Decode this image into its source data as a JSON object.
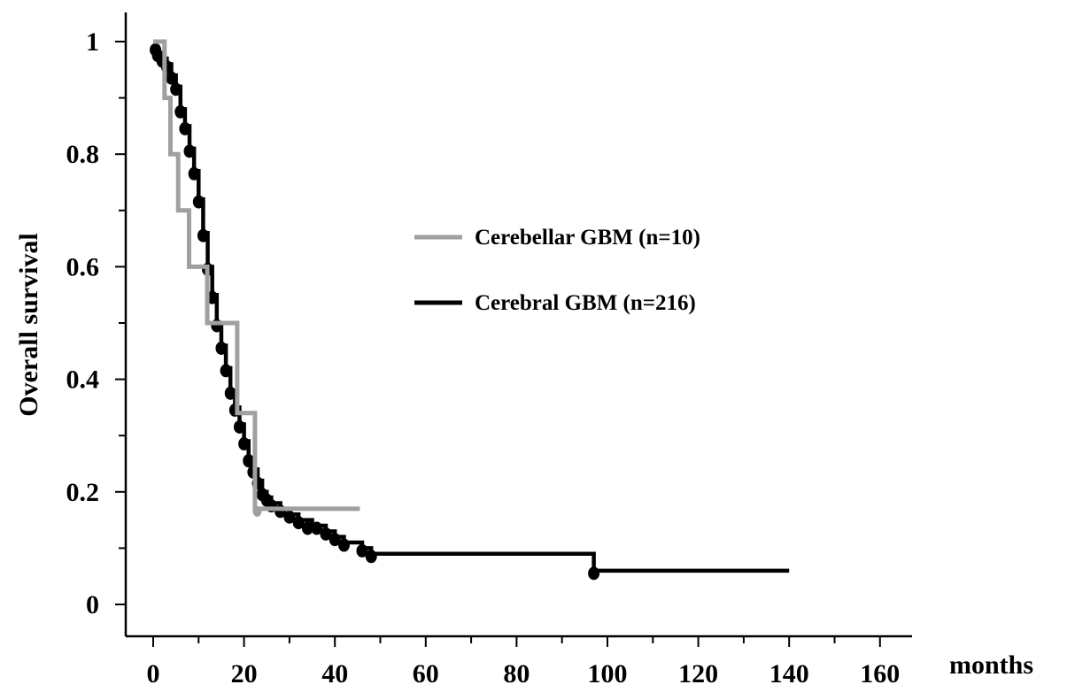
{
  "chart_data": {
    "type": "line",
    "subtype": "kaplan-meier",
    "title": "",
    "xlabel": "months",
    "ylabel": "Overall survival",
    "xlim": [
      -5,
      167
    ],
    "ylim": [
      -0.05,
      1.05
    ],
    "xticks": [
      0,
      20,
      40,
      60,
      80,
      100,
      120,
      140,
      160
    ],
    "xtick_labels": [
      "0",
      "20",
      "40",
      "60",
      "80",
      "100",
      "120",
      "140",
      "160"
    ],
    "xminor_step": 10,
    "yticks": [
      0,
      0.2,
      0.4,
      0.6,
      0.8,
      1
    ],
    "ytick_labels": [
      "0",
      "0.2",
      "0.4",
      "0.6",
      "0.8",
      "1"
    ],
    "grid": false,
    "legend_position": "center-right",
    "series": [
      {
        "name": "Cerebellar GBM (n=10)",
        "color": "#a0a0a0",
        "step": true,
        "points": [
          [
            0,
            1.0
          ],
          [
            2.5,
            1.0
          ],
          [
            2.5,
            0.9
          ],
          [
            3.8,
            0.9
          ],
          [
            3.8,
            0.8
          ],
          [
            5.5,
            0.8
          ],
          [
            5.5,
            0.7
          ],
          [
            7.9,
            0.7
          ],
          [
            7.9,
            0.6
          ],
          [
            11.9,
            0.6
          ],
          [
            11.9,
            0.5
          ],
          [
            18.5,
            0.5
          ],
          [
            18.5,
            0.34
          ],
          [
            22.4,
            0.34
          ],
          [
            22.4,
            0.17
          ],
          [
            45.5,
            0.17
          ]
        ],
        "censored": [
          [
            22.9,
            0.17
          ]
        ]
      },
      {
        "name": "Cerebral GBM (n=216)",
        "color": "#000000",
        "step": true,
        "points": [
          [
            0,
            1.0
          ],
          [
            0.5,
            0.99
          ],
          [
            1,
            0.98
          ],
          [
            2,
            0.97
          ],
          [
            3,
            0.96
          ],
          [
            4,
            0.94
          ],
          [
            5,
            0.92
          ],
          [
            6,
            0.88
          ],
          [
            7,
            0.85
          ],
          [
            8,
            0.81
          ],
          [
            9,
            0.77
          ],
          [
            10,
            0.72
          ],
          [
            11,
            0.66
          ],
          [
            12,
            0.6
          ],
          [
            13,
            0.55
          ],
          [
            14,
            0.5
          ],
          [
            15,
            0.46
          ],
          [
            16,
            0.42
          ],
          [
            17,
            0.38
          ],
          [
            18,
            0.35
          ],
          [
            19,
            0.32
          ],
          [
            20,
            0.29
          ],
          [
            21,
            0.26
          ],
          [
            22,
            0.24
          ],
          [
            23,
            0.22
          ],
          [
            24,
            0.2
          ],
          [
            25,
            0.19
          ],
          [
            26,
            0.18
          ],
          [
            28,
            0.17
          ],
          [
            30,
            0.16
          ],
          [
            32,
            0.15
          ],
          [
            35,
            0.14
          ],
          [
            38,
            0.13
          ],
          [
            40,
            0.12
          ],
          [
            42,
            0.11
          ],
          [
            46,
            0.1
          ],
          [
            48,
            0.09
          ],
          [
            97,
            0.09
          ],
          [
            97,
            0.06
          ],
          [
            140,
            0.06
          ]
        ],
        "censored": [
          [
            0.5,
            0.99
          ],
          [
            1,
            0.98
          ],
          [
            2,
            0.97
          ],
          [
            3,
            0.96
          ],
          [
            4,
            0.94
          ],
          [
            5,
            0.92
          ],
          [
            6,
            0.88
          ],
          [
            7,
            0.85
          ],
          [
            8,
            0.81
          ],
          [
            9,
            0.77
          ],
          [
            10,
            0.72
          ],
          [
            11,
            0.66
          ],
          [
            12,
            0.6
          ],
          [
            13,
            0.55
          ],
          [
            14,
            0.5
          ],
          [
            15,
            0.46
          ],
          [
            16,
            0.42
          ],
          [
            17,
            0.38
          ],
          [
            18,
            0.35
          ],
          [
            19,
            0.32
          ],
          [
            20,
            0.29
          ],
          [
            21,
            0.26
          ],
          [
            22,
            0.24
          ],
          [
            23,
            0.22
          ],
          [
            24,
            0.2
          ],
          [
            25,
            0.19
          ],
          [
            26,
            0.18
          ],
          [
            28,
            0.17
          ],
          [
            30,
            0.16
          ],
          [
            32,
            0.15
          ],
          [
            34,
            0.14
          ],
          [
            36,
            0.14
          ],
          [
            38,
            0.13
          ],
          [
            40,
            0.12
          ],
          [
            42,
            0.11
          ],
          [
            46,
            0.1
          ],
          [
            48,
            0.09
          ],
          [
            97,
            0.06
          ]
        ]
      }
    ]
  }
}
